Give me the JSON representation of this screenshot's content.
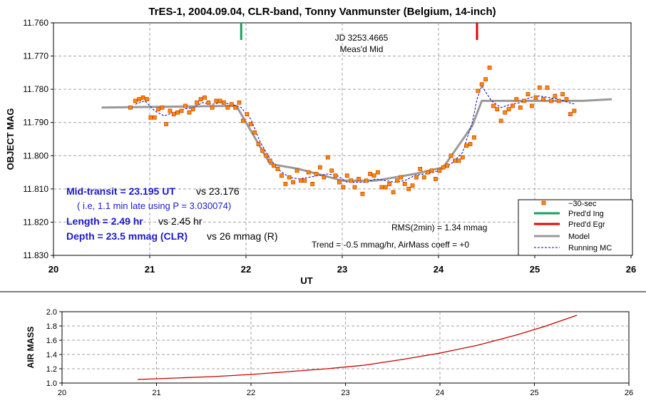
{
  "chart_data": [
    {
      "type": "scatter",
      "title": "TrES-1, 2004.09.04, CLR-band, Tonny Vanmunster (Belgium, 14-inch)",
      "xlabel": "UT",
      "ylabel": "OBJECT MAG",
      "xlim": [
        20,
        26
      ],
      "ylim": [
        11.76,
        11.83
      ],
      "y_inverted": true,
      "grid": true,
      "legend_position": "bottom-right",
      "x_ticks": [
        "20",
        "21",
        "22",
        "23",
        "24",
        "25",
        "26"
      ],
      "y_ticks": [
        "11.760",
        "11.770",
        "11.780",
        "11.790",
        "11.800",
        "11.810",
        "11.820",
        "11.830"
      ],
      "series": [
        {
          "name": "~30-sec",
          "color": "#ff8c00",
          "x": [
            20.8,
            20.85,
            20.89,
            20.93,
            20.97,
            21.01,
            21.05,
            21.09,
            21.13,
            21.17,
            21.21,
            21.25,
            21.29,
            21.33,
            21.37,
            21.41,
            21.45,
            21.49,
            21.53,
            21.57,
            21.61,
            21.65,
            21.69,
            21.73,
            21.77,
            21.81,
            21.85,
            21.89,
            21.93,
            21.97,
            22.01,
            22.05,
            22.09,
            22.13,
            22.17,
            22.21,
            22.25,
            22.29,
            22.33,
            22.37,
            22.41,
            22.45,
            22.49,
            22.53,
            22.57,
            22.61,
            22.65,
            22.69,
            22.73,
            22.77,
            22.81,
            22.85,
            22.89,
            22.93,
            22.97,
            23.01,
            23.05,
            23.09,
            23.13,
            23.17,
            23.21,
            23.25,
            23.29,
            23.33,
            23.37,
            23.41,
            23.45,
            23.49,
            23.53,
            23.57,
            23.61,
            23.65,
            23.69,
            23.73,
            23.77,
            23.81,
            23.85,
            23.89,
            23.93,
            23.97,
            24.01,
            24.05,
            24.09,
            24.13,
            24.17,
            24.21,
            24.25,
            24.29,
            24.33,
            24.37,
            24.41,
            24.45,
            24.49,
            24.53,
            24.57,
            24.61,
            24.65,
            24.69,
            24.73,
            24.77,
            24.81,
            24.85,
            24.89,
            24.93,
            24.97,
            25.01,
            25.05,
            25.09,
            25.13,
            25.17,
            25.21,
            25.25,
            25.29,
            25.33,
            25.37,
            25.41
          ],
          "y": [
            11.7855,
            11.7835,
            11.783,
            11.7825,
            11.783,
            11.7885,
            11.7885,
            11.786,
            11.7855,
            11.7905,
            11.7865,
            11.7875,
            11.787,
            11.7865,
            11.785,
            11.787,
            11.786,
            11.784,
            11.783,
            11.7825,
            11.784,
            11.7855,
            11.7835,
            11.7835,
            11.784,
            11.7855,
            11.7845,
            11.7855,
            11.784,
            11.7895,
            11.7875,
            11.7905,
            11.793,
            11.7965,
            11.7985,
            11.8,
            11.8015,
            11.803,
            11.804,
            11.806,
            11.8085,
            11.8065,
            11.808,
            11.8045,
            11.8075,
            11.8075,
            11.805,
            11.8085,
            11.8055,
            11.8035,
            11.8065,
            11.8005,
            11.8045,
            11.806,
            11.808,
            11.8095,
            11.806,
            11.8075,
            11.8095,
            11.807,
            11.8115,
            11.8075,
            11.8055,
            11.806,
            11.805,
            11.8095,
            11.8095,
            11.8085,
            11.811,
            11.8075,
            11.8065,
            11.8085,
            11.81,
            11.809,
            11.8065,
            11.804,
            11.8065,
            11.805,
            11.8045,
            11.807,
            11.8045,
            11.8035,
            11.803,
            11.8,
            11.8015,
            11.8015,
            11.8005,
            11.797,
            11.7965,
            11.7945,
            11.7805,
            11.7785,
            11.777,
            11.7735,
            11.785,
            11.786,
            11.7895,
            11.787,
            11.786,
            11.785,
            11.783,
            11.7855,
            11.7835,
            11.7815,
            11.785,
            11.7825,
            11.7795,
            11.783,
            11.7795,
            11.7835,
            11.782,
            11.7835,
            11.7815,
            11.783,
            11.7875,
            11.7865
          ]
        },
        {
          "name": "Model",
          "color": "#999999",
          "x": [
            20.5,
            21.9,
            22.25,
            22.55,
            23.0,
            23.35,
            23.75,
            24.05,
            24.35,
            24.45,
            25.5,
            25.8
          ],
          "y": [
            11.7855,
            11.785,
            11.8025,
            11.804,
            11.8075,
            11.8075,
            11.8055,
            11.8035,
            11.791,
            11.7835,
            11.7835,
            11.783
          ]
        },
        {
          "name": "Running MC",
          "color": "#0000cc",
          "x": [
            20.85,
            20.95,
            21.05,
            21.15,
            21.25,
            21.35,
            21.45,
            21.55,
            21.65,
            21.75,
            21.85,
            21.95,
            22.05,
            22.15,
            22.25,
            22.35,
            22.45,
            22.55,
            22.65,
            22.75,
            22.85,
            22.95,
            23.05,
            23.15,
            23.25,
            23.35,
            23.45,
            23.55,
            23.65,
            23.75,
            23.85,
            23.95,
            24.05,
            24.15,
            24.25,
            24.35,
            24.4,
            24.45,
            24.55,
            24.65,
            24.75,
            24.85,
            24.95,
            25.05,
            25.15,
            25.25,
            25.35,
            25.42
          ],
          "y": [
            11.7845,
            11.7835,
            11.7865,
            11.788,
            11.787,
            11.786,
            11.7855,
            11.784,
            11.7845,
            11.784,
            11.7845,
            11.7855,
            11.789,
            11.796,
            11.801,
            11.8045,
            11.8065,
            11.807,
            11.8065,
            11.806,
            11.8055,
            11.806,
            11.808,
            11.808,
            11.808,
            11.807,
            11.8075,
            11.808,
            11.8075,
            11.806,
            11.8055,
            11.805,
            11.804,
            11.802,
            11.799,
            11.79,
            11.783,
            11.779,
            11.7835,
            11.7855,
            11.7845,
            11.784,
            11.7825,
            11.782,
            11.7825,
            11.783,
            11.784,
            11.7845
          ]
        }
      ],
      "markers": [
        {
          "name": "Pred'd Ing",
          "x": 21.95,
          "color": "#1aa060"
        },
        {
          "name": "Pred'd Egr",
          "x": 24.4,
          "color": "#ee0000"
        }
      ],
      "legend": [
        "~30-sec",
        "Pred'd Ing",
        "Pred'd Egr",
        "Model",
        "Running MC"
      ],
      "annotations": {
        "jd_line1": "JD 3253.4665",
        "jd_line2": "Meas'd Mid",
        "mid_main": "Mid-transit = 23.195 UT",
        "mid_vs": "vs 23.176",
        "mid_note": "( i.e, 1.1 min late using P = 3.030074)",
        "length_main": "Length = 2.49 hr",
        "length_vs": "vs 2.45 hr",
        "depth_main": "Depth = 23.5 mmag (CLR)",
        "depth_vs": "vs 26 mmag (R)",
        "rms": "RMS(2min) = 1.34 mmag",
        "trend": "Trend = -0.5 mmag/hr, AirMass coeff = +0"
      }
    },
    {
      "type": "line",
      "ylabel": "AIR MASS",
      "xlim": [
        20,
        26
      ],
      "ylim": [
        1.0,
        2.0
      ],
      "grid": true,
      "x_ticks": [
        "20",
        "21",
        "22",
        "23",
        "24",
        "25",
        "26"
      ],
      "y_ticks": [
        "1.0",
        "1.2",
        "1.4",
        "1.6",
        "1.8",
        "2.0"
      ],
      "series": [
        {
          "name": "",
          "color": "#cc0000",
          "x": [
            20.8,
            21.2,
            21.6,
            22.0,
            22.4,
            22.8,
            23.2,
            23.6,
            24.0,
            24.4,
            24.8,
            25.1,
            25.45
          ],
          "y": [
            1.05,
            1.07,
            1.09,
            1.12,
            1.16,
            1.2,
            1.25,
            1.33,
            1.42,
            1.53,
            1.67,
            1.79,
            1.95
          ]
        }
      ]
    }
  ]
}
